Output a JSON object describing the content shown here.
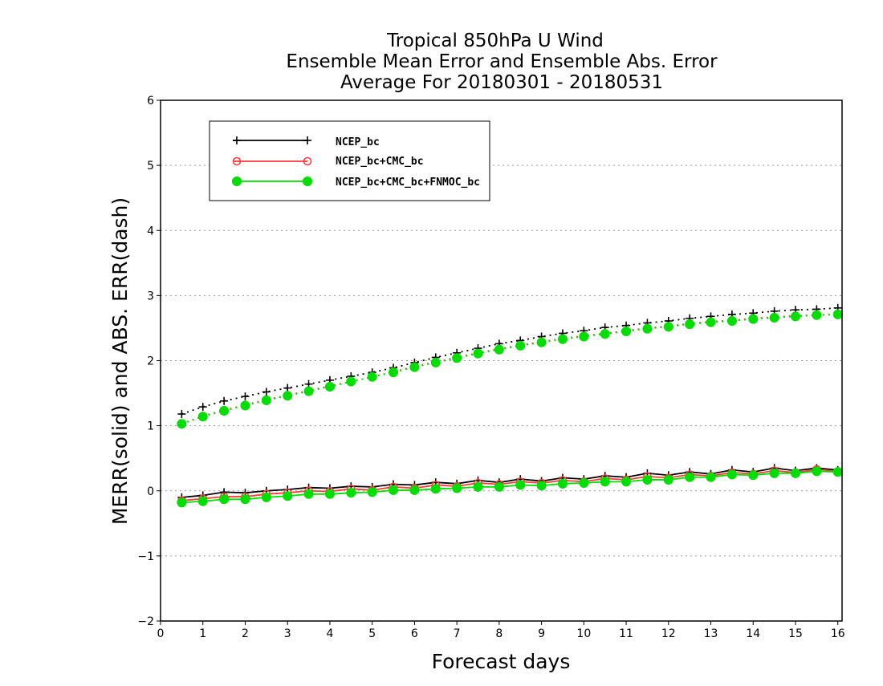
{
  "chart_data": {
    "type": "line",
    "title_lines": [
      "Tropical 850hPa U Wind",
      "Ensemble Mean Error and Ensemble Abs. Error",
      "Average For 20180301 - 20180531"
    ],
    "xlabel": "Forecast days",
    "ylabel": "MERR(solid) and ABS. ERR(dash)",
    "xlim": [
      0,
      16.1
    ],
    "ylim": [
      -2,
      6
    ],
    "x_ticks": [
      "0",
      "1",
      "2",
      "3",
      "4",
      "5",
      "6",
      "7",
      "8",
      "9",
      "10",
      "11",
      "12",
      "13",
      "14",
      "15",
      "16"
    ],
    "y_ticks": [
      "−2",
      "−1",
      "0",
      "1",
      "2",
      "3",
      "4",
      "5",
      "6"
    ],
    "grid": "horizontal dotted",
    "legend_position": "top-left",
    "legend": [
      {
        "name": "NCEP_bc",
        "color": "#000000",
        "marker": "plus"
      },
      {
        "name": "NCEP_bc+CMC_bc",
        "color": "#ff3b3b",
        "marker": "open-circle"
      },
      {
        "name": "NCEP_bc+CMC_bc+FNMOC_bc",
        "color": "#00dd00",
        "marker": "filled-circle"
      }
    ],
    "x": [
      0.5,
      1,
      1.5,
      2,
      2.5,
      3,
      3.5,
      4,
      4.5,
      5,
      5.5,
      6,
      6.5,
      7,
      7.5,
      8,
      8.5,
      9,
      9.5,
      10,
      10.5,
      11,
      11.5,
      12,
      12.5,
      13,
      13.5,
      14,
      14.5,
      15,
      15.5,
      16
    ],
    "series": [
      {
        "name": "NCEP_bc",
        "style": "solid",
        "color": "#000000",
        "marker": "plus",
        "values": [
          -0.1,
          -0.07,
          -0.02,
          -0.03,
          0,
          0.02,
          0.05,
          0.04,
          0.07,
          0.06,
          0.1,
          0.09,
          0.13,
          0.11,
          0.16,
          0.13,
          0.18,
          0.15,
          0.2,
          0.18,
          0.23,
          0.21,
          0.27,
          0.24,
          0.29,
          0.26,
          0.32,
          0.29,
          0.35,
          0.31,
          0.35,
          0.32
        ]
      },
      {
        "name": "NCEP_bc",
        "style": "dash",
        "color": "#000000",
        "marker": "plus",
        "values": [
          1.18,
          1.29,
          1.38,
          1.45,
          1.52,
          1.58,
          1.64,
          1.7,
          1.76,
          1.82,
          1.89,
          1.97,
          2.05,
          2.12,
          2.19,
          2.26,
          2.31,
          2.37,
          2.42,
          2.46,
          2.51,
          2.54,
          2.58,
          2.61,
          2.65,
          2.68,
          2.71,
          2.73,
          2.76,
          2.78,
          2.79,
          2.81
        ]
      },
      {
        "name": "NCEP_bc+CMC_bc",
        "style": "solid",
        "color": "#ff3b3b",
        "marker": "open-circle",
        "values": [
          -0.15,
          -0.12,
          -0.09,
          -0.09,
          -0.05,
          -0.03,
          0,
          -0.01,
          0.03,
          0.01,
          0.06,
          0.04,
          0.09,
          0.07,
          0.12,
          0.1,
          0.14,
          0.12,
          0.16,
          0.14,
          0.19,
          0.17,
          0.22,
          0.2,
          0.25,
          0.23,
          0.28,
          0.26,
          0.31,
          0.28,
          0.33,
          0.3
        ]
      },
      {
        "name": "NCEP_bc+CMC_bc",
        "style": "dash",
        "color": "#ff3b3b",
        "marker": "open-circle",
        "values": [
          1.03,
          1.15,
          1.24,
          1.32,
          1.4,
          1.47,
          1.54,
          1.61,
          1.68,
          1.75,
          1.83,
          1.91,
          1.98,
          2.05,
          2.12,
          2.18,
          2.24,
          2.29,
          2.34,
          2.38,
          2.42,
          2.46,
          2.5,
          2.53,
          2.57,
          2.6,
          2.62,
          2.65,
          2.67,
          2.69,
          2.7,
          2.72
        ]
      },
      {
        "name": "NCEP_bc+CMC_bc+FNMOC_bc",
        "style": "solid",
        "color": "#00dd00",
        "marker": "filled-circle",
        "values": [
          -0.18,
          -0.16,
          -0.13,
          -0.13,
          -0.1,
          -0.08,
          -0.05,
          -0.05,
          -0.03,
          -0.02,
          0.01,
          0.01,
          0.03,
          0.04,
          0.06,
          0.06,
          0.09,
          0.08,
          0.11,
          0.12,
          0.14,
          0.14,
          0.17,
          0.17,
          0.21,
          0.21,
          0.25,
          0.24,
          0.27,
          0.27,
          0.3,
          0.29
        ]
      },
      {
        "name": "NCEP_bc+CMC_bc+FNMOC_bc",
        "style": "dash",
        "color": "#00dd00",
        "marker": "filled-circle",
        "values": [
          1.03,
          1.14,
          1.23,
          1.31,
          1.39,
          1.46,
          1.53,
          1.6,
          1.68,
          1.75,
          1.82,
          1.9,
          1.97,
          2.04,
          2.11,
          2.17,
          2.23,
          2.28,
          2.33,
          2.37,
          2.41,
          2.45,
          2.49,
          2.52,
          2.56,
          2.59,
          2.61,
          2.64,
          2.66,
          2.68,
          2.7,
          2.71
        ]
      }
    ]
  }
}
